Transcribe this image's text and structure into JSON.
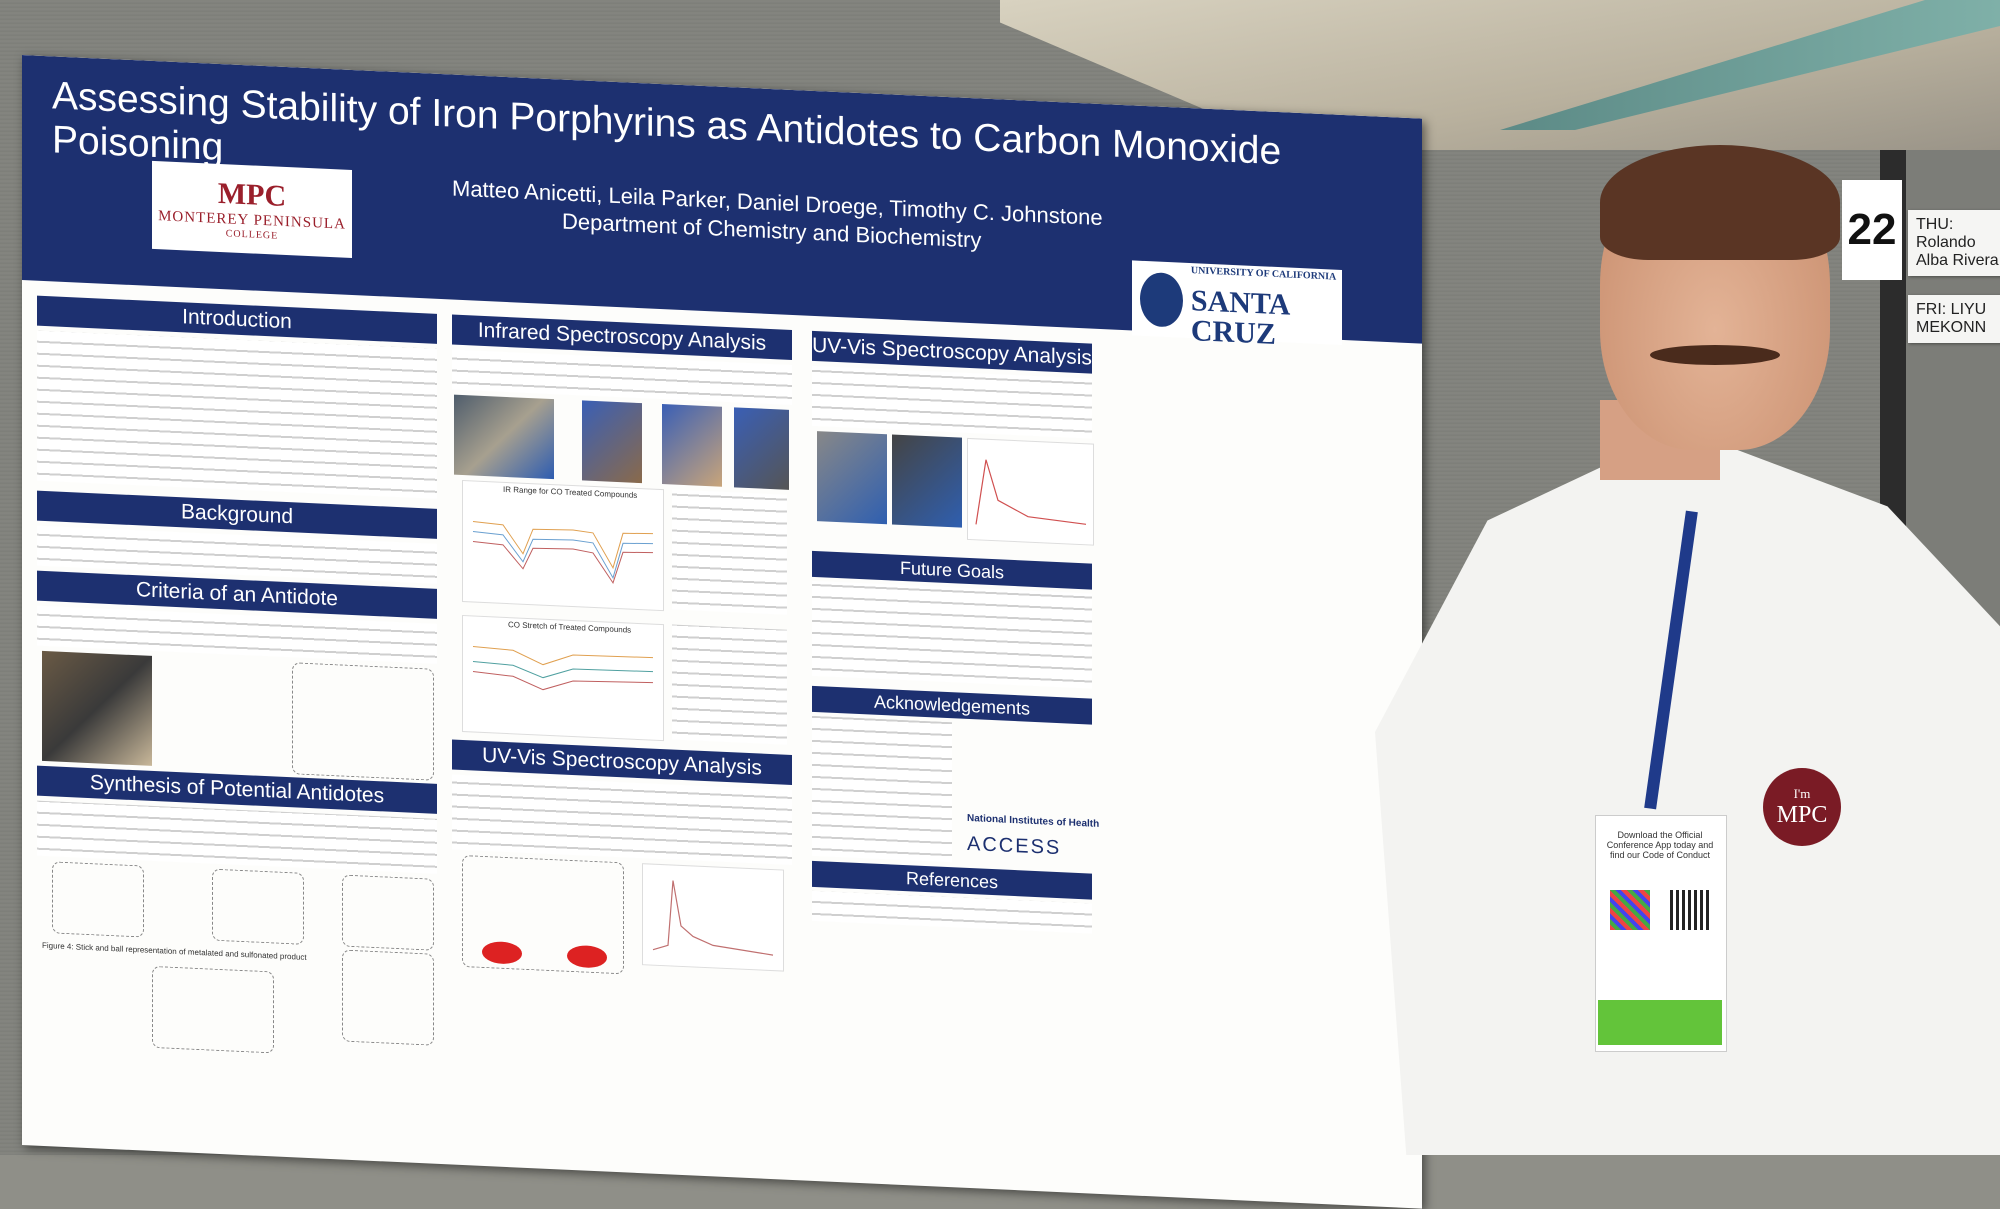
{
  "poster": {
    "title": "Assessing Stability of Iron Porphyrins as Antidotes to Carbon Monoxide Poisoning",
    "authors": "Matteo Anicetti, Leila Parker, Daniel Droege, Timothy C. Johnstone",
    "department": "Department of Chemistry and Biochemistry",
    "logo_left_main": "MPC",
    "logo_left_sub": "MONTEREY PENINSULA",
    "logo_left_college": "COLLEGE",
    "logo_right_top": "UNIVERSITY OF CALIFORNIA",
    "logo_right_main": "SANTA CRUZ",
    "sections": {
      "introduction": "Introduction",
      "background": "Background",
      "criteria": "Criteria of an Antidote",
      "synthesis": "Synthesis of Potential Antidotes",
      "ir": "Infrared Spectroscopy Analysis",
      "uvvis_middle": "UV-Vis Spectroscopy Analysis",
      "uvvis_right": "UV-Vis Spectroscopy Analysis",
      "future": "Future Goals",
      "acknowledgements": "Acknowledgements",
      "references": "References"
    },
    "ir_chart1_title": "IR Range for CO Treated Compounds",
    "ir_chart2_title": "CO Stretch of Treated Compounds",
    "synthesis_figure_caption": "Figure 4: Stick and ball representation of metalated and sulfonated product",
    "nih_logo": "National Institutes of Health",
    "access_logo": "ACCESS"
  },
  "venue": {
    "board_number": "22",
    "nameplate_1": "THU: Rolando Alba Rivera",
    "nameplate_2": "FRI: LIYU MEKONN"
  },
  "badge": {
    "text": "Download the Official Conference App today and find our Code of Conduct",
    "pin_line1": "I'm",
    "pin_line2": "MPC"
  }
}
